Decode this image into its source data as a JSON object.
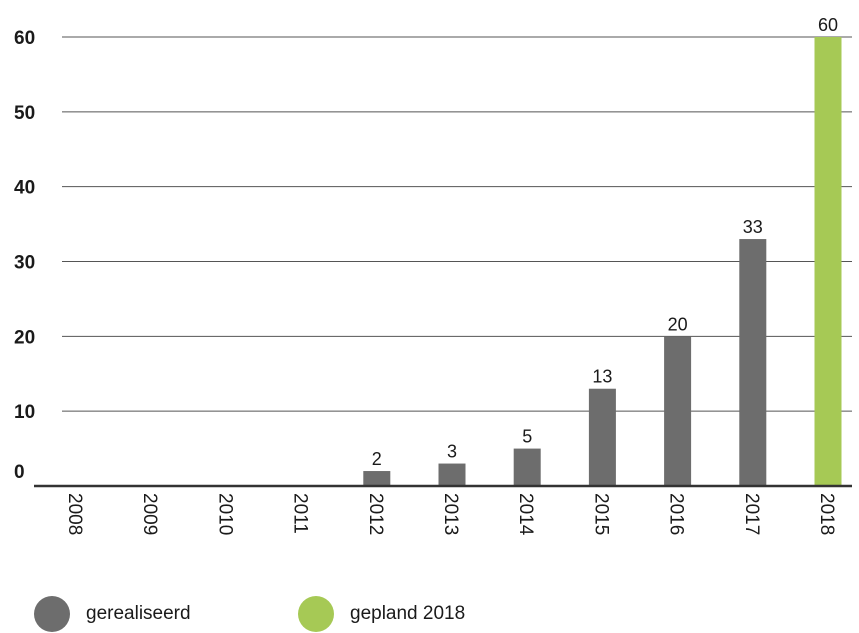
{
  "chart_data": {
    "type": "bar",
    "categories": [
      "2008",
      "2009",
      "2010",
      "2011",
      "2012",
      "2013",
      "2014",
      "2015",
      "2016",
      "2017",
      "2018"
    ],
    "values": [
      0,
      0,
      0,
      0,
      2,
      3,
      5,
      13,
      20,
      33,
      60
    ],
    "data_labels": [
      "",
      "",
      "",
      "",
      "2",
      "3",
      "5",
      "13",
      "20",
      "33",
      "60"
    ],
    "series_of_bar": [
      "gerealiseerd",
      "gerealiseerd",
      "gerealiseerd",
      "gerealiseerd",
      "gerealiseerd",
      "gerealiseerd",
      "gerealiseerd",
      "gerealiseerd",
      "gerealiseerd",
      "gerealiseerd",
      "gepland 2018"
    ],
    "ylim": [
      0,
      60
    ],
    "yticks": [
      0,
      10,
      20,
      30,
      40,
      50,
      60
    ],
    "ytick_labels": [
      "0",
      "10",
      "20",
      "30",
      "40",
      "50",
      "60"
    ],
    "grid": true,
    "legend_position": "bottom",
    "title": "",
    "xlabel": "",
    "ylabel": ""
  },
  "legend": {
    "items": [
      {
        "label": "gerealiseerd",
        "color": "#6d6d6d"
      },
      {
        "label": "gepland 2018",
        "color": "#a6c955"
      }
    ]
  },
  "colors": {
    "realized": "#6d6d6d",
    "planned": "#a6c955",
    "grid": "#555555",
    "axis": "#333333"
  }
}
